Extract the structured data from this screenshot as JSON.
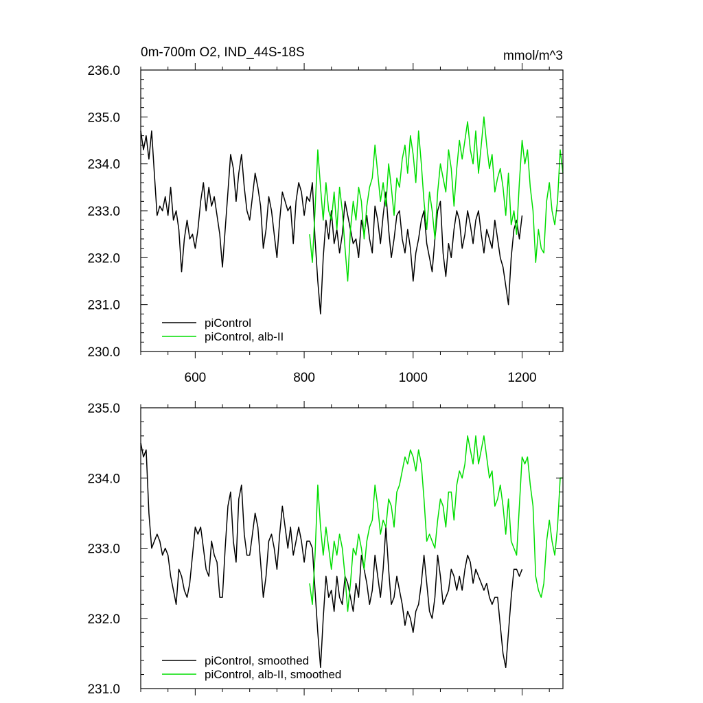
{
  "chart_data": [
    {
      "type": "line",
      "title": "0m-700m O2, IND_44S-18S",
      "units": "mmol/m^3",
      "xlim": [
        500,
        1275
      ],
      "ylim": [
        230.0,
        236.0
      ],
      "xticks": [
        600,
        800,
        1000,
        1200
      ],
      "xtick_labels": [
        "600",
        "800",
        "1000",
        "1200"
      ],
      "yticks": [
        230.0,
        231.0,
        232.0,
        233.0,
        234.0,
        235.0,
        236.0
      ],
      "ytick_labels": [
        "230.0",
        "231.0",
        "232.0",
        "233.0",
        "234.0",
        "235.0",
        "236.0"
      ],
      "legend": "bottom-left",
      "grid": false,
      "series": [
        {
          "name": "piControl",
          "color": "#000000",
          "x": [
            500,
            505,
            510,
            515,
            520,
            525,
            530,
            535,
            540,
            545,
            550,
            555,
            560,
            565,
            570,
            575,
            580,
            585,
            590,
            595,
            600,
            605,
            610,
            615,
            620,
            625,
            630,
            635,
            640,
            645,
            650,
            655,
            660,
            665,
            670,
            675,
            680,
            685,
            690,
            695,
            700,
            705,
            710,
            715,
            720,
            725,
            730,
            735,
            740,
            745,
            750,
            755,
            760,
            765,
            770,
            775,
            780,
            785,
            790,
            795,
            800,
            805,
            810,
            815,
            820,
            825,
            830,
            835,
            840,
            845,
            850,
            855,
            860,
            865,
            870,
            875,
            880,
            885,
            890,
            895,
            900,
            905,
            910,
            915,
            920,
            925,
            930,
            935,
            940,
            945,
            950,
            955,
            960,
            965,
            970,
            975,
            980,
            985,
            990,
            995,
            1000,
            1005,
            1010,
            1015,
            1020,
            1025,
            1030,
            1035,
            1040,
            1045,
            1050,
            1055,
            1060,
            1065,
            1070,
            1075,
            1080,
            1085,
            1090,
            1095,
            1100,
            1105,
            1110,
            1115,
            1120,
            1125,
            1130,
            1135,
            1140,
            1145,
            1150,
            1155,
            1160,
            1165,
            1170,
            1175,
            1180,
            1185,
            1190,
            1195,
            1200
          ],
          "y": [
            234.7,
            234.3,
            234.6,
            234.1,
            234.7,
            233.8,
            232.9,
            233.1,
            233.0,
            233.3,
            232.9,
            233.5,
            232.8,
            233.0,
            232.6,
            231.7,
            232.4,
            232.8,
            232.4,
            232.5,
            232.2,
            232.6,
            233.2,
            233.6,
            233.0,
            233.5,
            233.1,
            233.3,
            232.9,
            232.5,
            231.8,
            232.6,
            233.4,
            234.2,
            233.9,
            233.2,
            233.8,
            234.2,
            233.5,
            233.0,
            232.8,
            233.3,
            233.8,
            233.5,
            233.1,
            232.2,
            232.6,
            233.3,
            233.0,
            232.5,
            232.0,
            232.8,
            233.4,
            233.2,
            233.0,
            233.1,
            232.3,
            233.2,
            233.6,
            233.4,
            232.9,
            233.3,
            233.2,
            233.6,
            232.4,
            231.5,
            230.8,
            232.0,
            232.8,
            232.4,
            233.0,
            232.3,
            232.6,
            232.1,
            232.5,
            233.2,
            232.9,
            232.6,
            232.3,
            232.4,
            232.0,
            232.8,
            232.5,
            232.9,
            232.4,
            232.1,
            233.1,
            232.8,
            232.3,
            232.9,
            233.4,
            232.6,
            232.0,
            232.4,
            232.9,
            233.0,
            232.4,
            232.1,
            232.6,
            232.2,
            231.5,
            232.1,
            232.4,
            232.8,
            233.0,
            232.3,
            232.0,
            231.7,
            232.4,
            233.0,
            233.2,
            232.1,
            231.6,
            232.3,
            232.0,
            232.6,
            233.0,
            232.8,
            232.2,
            232.5,
            233.0,
            232.7,
            232.3,
            232.8,
            233.0,
            232.5,
            232.1,
            232.6,
            232.4,
            232.2,
            232.8,
            232.4,
            232.0,
            231.8,
            231.4,
            231.0,
            232.0,
            232.6,
            232.8,
            232.4,
            232.9
          ]
        },
        {
          "name": "piControl, alb-II",
          "color": "#00dd00",
          "x": [
            810,
            815,
            820,
            825,
            830,
            835,
            840,
            845,
            850,
            855,
            860,
            865,
            870,
            875,
            880,
            885,
            890,
            895,
            900,
            905,
            910,
            915,
            920,
            925,
            930,
            935,
            940,
            945,
            950,
            955,
            960,
            965,
            970,
            975,
            980,
            985,
            990,
            995,
            1000,
            1005,
            1010,
            1015,
            1020,
            1025,
            1030,
            1035,
            1040,
            1045,
            1050,
            1055,
            1060,
            1065,
            1070,
            1075,
            1080,
            1085,
            1090,
            1095,
            1100,
            1105,
            1110,
            1115,
            1120,
            1125,
            1130,
            1135,
            1140,
            1145,
            1150,
            1155,
            1160,
            1165,
            1170,
            1175,
            1180,
            1185,
            1190,
            1195,
            1200,
            1205,
            1210,
            1215,
            1220,
            1225,
            1230,
            1235,
            1240,
            1245,
            1250,
            1255,
            1260,
            1265,
            1270,
            1275
          ],
          "y": [
            232.5,
            231.9,
            233.0,
            234.3,
            233.5,
            232.8,
            233.6,
            233.0,
            232.8,
            233.4,
            232.6,
            233.5,
            233.0,
            232.2,
            231.5,
            232.6,
            233.2,
            232.8,
            233.5,
            233.2,
            232.4,
            233.1,
            233.5,
            233.7,
            234.4,
            233.8,
            233.2,
            233.6,
            233.1,
            234.0,
            233.5,
            232.9,
            233.7,
            233.5,
            234.1,
            234.4,
            233.8,
            234.6,
            234.2,
            233.6,
            234.7,
            234.0,
            233.2,
            232.6,
            233.4,
            233.0,
            232.4,
            233.4,
            234.0,
            233.7,
            233.4,
            234.3,
            233.9,
            233.1,
            233.9,
            234.5,
            234.1,
            234.5,
            234.9,
            234.3,
            234.0,
            234.7,
            233.8,
            234.4,
            235.0,
            234.4,
            233.9,
            234.2,
            233.4,
            233.7,
            233.9,
            233.5,
            232.9,
            233.8,
            232.7,
            233.0,
            232.5,
            233.6,
            234.5,
            234.0,
            234.3,
            233.5,
            233.0,
            231.9,
            232.6,
            232.2,
            232.1,
            233.2,
            233.6,
            233.0,
            232.7,
            233.2,
            234.3,
            233.8
          ]
        }
      ]
    },
    {
      "type": "line",
      "title": "",
      "xlim": [
        500,
        1275
      ],
      "ylim": [
        231.0,
        235.0
      ],
      "xticks": [
        600,
        800,
        1000,
        1200
      ],
      "yticks": [
        231.0,
        232.0,
        233.0,
        234.0,
        235.0
      ],
      "ytick_labels": [
        "231.0",
        "232.0",
        "233.0",
        "234.0",
        "235.0"
      ],
      "legend": "bottom-left",
      "grid": false,
      "series": [
        {
          "name": "piControl, smoothed",
          "color": "#000000",
          "x": [
            500,
            505,
            510,
            515,
            520,
            525,
            530,
            535,
            540,
            545,
            550,
            555,
            560,
            565,
            570,
            575,
            580,
            585,
            590,
            595,
            600,
            605,
            610,
            615,
            620,
            625,
            630,
            635,
            640,
            645,
            650,
            655,
            660,
            665,
            670,
            675,
            680,
            685,
            690,
            695,
            700,
            705,
            710,
            715,
            720,
            725,
            730,
            735,
            740,
            745,
            750,
            755,
            760,
            765,
            770,
            775,
            780,
            785,
            790,
            795,
            800,
            805,
            810,
            815,
            820,
            825,
            830,
            835,
            840,
            845,
            850,
            855,
            860,
            865,
            870,
            875,
            880,
            885,
            890,
            895,
            900,
            905,
            910,
            915,
            920,
            925,
            930,
            935,
            940,
            945,
            950,
            955,
            960,
            965,
            970,
            975,
            980,
            985,
            990,
            995,
            1000,
            1005,
            1010,
            1015,
            1020,
            1025,
            1030,
            1035,
            1040,
            1045,
            1050,
            1055,
            1060,
            1065,
            1070,
            1075,
            1080,
            1085,
            1090,
            1095,
            1100,
            1105,
            1110,
            1115,
            1120,
            1125,
            1130,
            1135,
            1140,
            1145,
            1150,
            1155,
            1160,
            1165,
            1170,
            1175,
            1180,
            1185,
            1190,
            1195,
            1200
          ],
          "y": [
            234.5,
            234.3,
            234.4,
            233.5,
            233.0,
            233.1,
            233.2,
            233.1,
            232.9,
            233.0,
            232.9,
            232.6,
            232.4,
            232.2,
            232.7,
            232.6,
            232.4,
            232.3,
            232.5,
            232.9,
            233.3,
            233.2,
            233.3,
            233.0,
            232.7,
            232.6,
            233.1,
            232.9,
            232.8,
            232.3,
            232.3,
            233.0,
            233.6,
            233.8,
            233.1,
            232.8,
            233.7,
            233.9,
            233.2,
            232.9,
            232.9,
            233.2,
            233.5,
            233.3,
            232.8,
            232.3,
            232.6,
            233.1,
            233.2,
            233.0,
            232.7,
            233.2,
            233.6,
            233.3,
            233.0,
            233.3,
            232.9,
            233.1,
            233.3,
            233.1,
            232.8,
            233.1,
            233.1,
            233.0,
            232.4,
            231.8,
            231.3,
            232.0,
            232.6,
            232.3,
            232.4,
            232.1,
            232.6,
            232.3,
            232.2,
            232.6,
            232.5,
            232.3,
            232.1,
            232.5,
            232.3,
            232.9,
            232.7,
            232.5,
            232.2,
            232.4,
            232.9,
            232.6,
            232.3,
            232.7,
            233.3,
            232.7,
            232.2,
            232.3,
            232.6,
            232.4,
            232.2,
            231.9,
            232.1,
            232.0,
            231.8,
            232.1,
            232.2,
            232.5,
            232.9,
            232.5,
            232.1,
            232.0,
            232.3,
            232.9,
            232.6,
            232.2,
            232.3,
            232.4,
            232.7,
            232.6,
            232.4,
            232.6,
            232.4,
            232.7,
            232.9,
            232.8,
            232.5,
            232.7,
            232.6,
            232.5,
            232.4,
            232.5,
            232.3,
            232.2,
            232.3,
            232.3,
            231.9,
            231.5,
            231.3,
            231.8,
            232.3,
            232.7,
            232.7,
            232.6,
            232.7
          ]
        },
        {
          "name": "piControl, alb-II, smoothed",
          "color": "#00dd00",
          "x": [
            810,
            815,
            820,
            825,
            830,
            835,
            840,
            845,
            850,
            855,
            860,
            865,
            870,
            875,
            880,
            885,
            890,
            895,
            900,
            905,
            910,
            915,
            920,
            925,
            930,
            935,
            940,
            945,
            950,
            955,
            960,
            965,
            970,
            975,
            980,
            985,
            990,
            995,
            1000,
            1005,
            1010,
            1015,
            1020,
            1025,
            1030,
            1035,
            1040,
            1045,
            1050,
            1055,
            1060,
            1065,
            1070,
            1075,
            1080,
            1085,
            1090,
            1095,
            1100,
            1105,
            1110,
            1115,
            1120,
            1125,
            1130,
            1135,
            1140,
            1145,
            1150,
            1155,
            1160,
            1165,
            1170,
            1175,
            1180,
            1185,
            1190,
            1195,
            1200,
            1205,
            1210,
            1215,
            1220,
            1225,
            1230,
            1235,
            1240,
            1245,
            1250,
            1255,
            1260,
            1265,
            1270,
            1275
          ],
          "y": [
            232.5,
            232.2,
            232.9,
            233.9,
            233.3,
            232.9,
            233.3,
            233.0,
            232.7,
            233.1,
            232.9,
            233.2,
            233.0,
            232.6,
            232.1,
            232.5,
            233.0,
            232.9,
            233.2,
            233.0,
            232.7,
            233.1,
            233.3,
            233.4,
            233.9,
            233.6,
            233.2,
            233.4,
            233.3,
            233.7,
            233.6,
            233.3,
            233.8,
            233.9,
            234.1,
            234.3,
            234.2,
            234.4,
            234.3,
            234.1,
            234.4,
            234.2,
            233.7,
            233.1,
            233.2,
            233.1,
            233.0,
            233.4,
            233.7,
            233.6,
            233.3,
            233.8,
            233.8,
            233.4,
            233.9,
            234.1,
            234.0,
            234.2,
            234.6,
            234.4,
            234.2,
            234.6,
            234.2,
            234.4,
            234.6,
            234.3,
            234.0,
            234.1,
            233.6,
            233.7,
            233.9,
            233.6,
            233.2,
            233.7,
            233.1,
            233.0,
            232.9,
            233.6,
            234.3,
            234.2,
            234.3,
            233.9,
            233.6,
            232.6,
            232.4,
            232.3,
            232.5,
            233.1,
            233.4,
            233.1,
            232.9,
            233.3,
            234.0,
            234.0
          ]
        }
      ]
    }
  ]
}
